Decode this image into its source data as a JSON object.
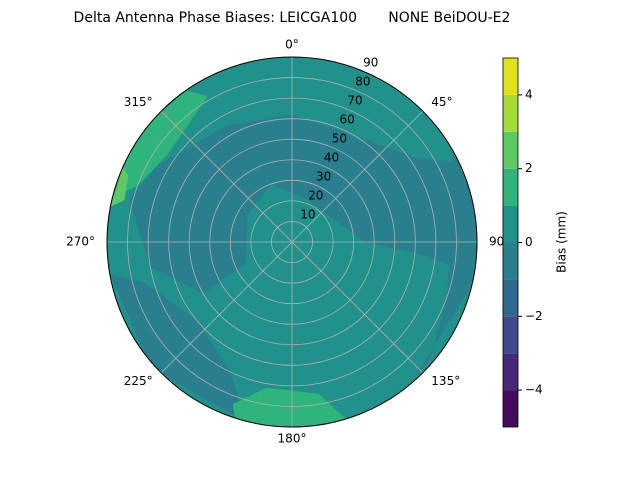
{
  "chart_data": {
    "type": "polar-contour",
    "title": "Delta Antenna Phase Biases: LEICGA100       NONE BeiDOU-E2",
    "rlim": [
      0,
      90
    ],
    "rticks": [
      10,
      20,
      30,
      40,
      50,
      60,
      70,
      80,
      90
    ],
    "theta_ticks": [
      {
        "value": 0,
        "label": "0°"
      },
      {
        "value": 45,
        "label": "45°"
      },
      {
        "value": 90,
        "label": "90"
      },
      {
        "value": 135,
        "label": "135°"
      },
      {
        "value": 180,
        "label": "180°"
      },
      {
        "value": 225,
        "label": "225°"
      },
      {
        "value": 270,
        "label": "270°"
      },
      {
        "value": 315,
        "label": "315°"
      }
    ],
    "grid": true,
    "regions": [
      {
        "z": 0.5
      },
      {
        "z": -0.5,
        "points": [
          [
            300,
            75
          ],
          [
            330,
            65
          ],
          [
            0,
            62
          ],
          [
            30,
            60
          ],
          [
            55,
            72
          ],
          [
            65,
            90
          ],
          [
            100,
            90
          ],
          [
            95,
            60
          ],
          [
            90,
            35
          ],
          [
            70,
            25
          ],
          [
            20,
            22
          ],
          [
            340,
            30
          ],
          [
            300,
            25
          ],
          [
            270,
            22
          ],
          [
            245,
            25
          ],
          [
            240,
            50
          ],
          [
            260,
            70
          ],
          [
            285,
            82
          ]
        ]
      },
      {
        "z": 0.5,
        "points": [
          [
            200,
            12
          ],
          [
            240,
            24
          ],
          [
            270,
            20
          ],
          [
            300,
            22
          ],
          [
            330,
            16
          ],
          [
            20,
            14
          ],
          [
            60,
            16
          ],
          [
            90,
            12
          ],
          [
            130,
            8
          ]
        ]
      },
      {
        "z": -0.5,
        "points": [
          [
            60,
            90
          ],
          [
            75,
            82
          ],
          [
            110,
            80
          ],
          [
            130,
            88
          ],
          [
            140,
            90
          ],
          [
            100,
            92
          ],
          [
            80,
            92
          ]
        ]
      },
      {
        "z": -0.5,
        "points": [
          [
            195,
            90
          ],
          [
            205,
            70
          ],
          [
            230,
            60
          ],
          [
            255,
            75
          ],
          [
            260,
            90
          ],
          [
            228,
            92
          ]
        ]
      },
      {
        "z": 1.5,
        "points": [
          [
            284,
            90
          ],
          [
            290,
            80
          ],
          [
            305,
            74
          ],
          [
            330,
            82
          ],
          [
            325,
            90
          ],
          [
            305,
            92
          ]
        ]
      },
      {
        "z": 2.5,
        "points": [
          [
            281,
            90
          ],
          [
            284,
            84
          ],
          [
            292,
            86
          ],
          [
            294,
            90
          ]
        ]
      },
      {
        "z": 1.5,
        "points": [
          [
            163,
            90
          ],
          [
            170,
            75
          ],
          [
            190,
            72
          ],
          [
            200,
            84
          ],
          [
            198,
            90
          ],
          [
            180,
            92
          ]
        ]
      }
    ],
    "colorbar": {
      "label": "Bias (mm)",
      "levels": [
        -5,
        -4,
        -3,
        -2,
        -1,
        0,
        1,
        2,
        3,
        4,
        5
      ],
      "colors": [
        "#450c5d",
        "#482878",
        "#3e4a89",
        "#31688e",
        "#2a7f8e",
        "#21918c",
        "#2fb47c",
        "#5ec962",
        "#a5db36",
        "#e0e319"
      ],
      "ticks": [
        {
          "value": -4,
          "label": "−4"
        },
        {
          "value": -2,
          "label": "−2"
        },
        {
          "value": 0,
          "label": "0"
        },
        {
          "value": 2,
          "label": "2"
        },
        {
          "value": 4,
          "label": "4"
        }
      ]
    }
  }
}
